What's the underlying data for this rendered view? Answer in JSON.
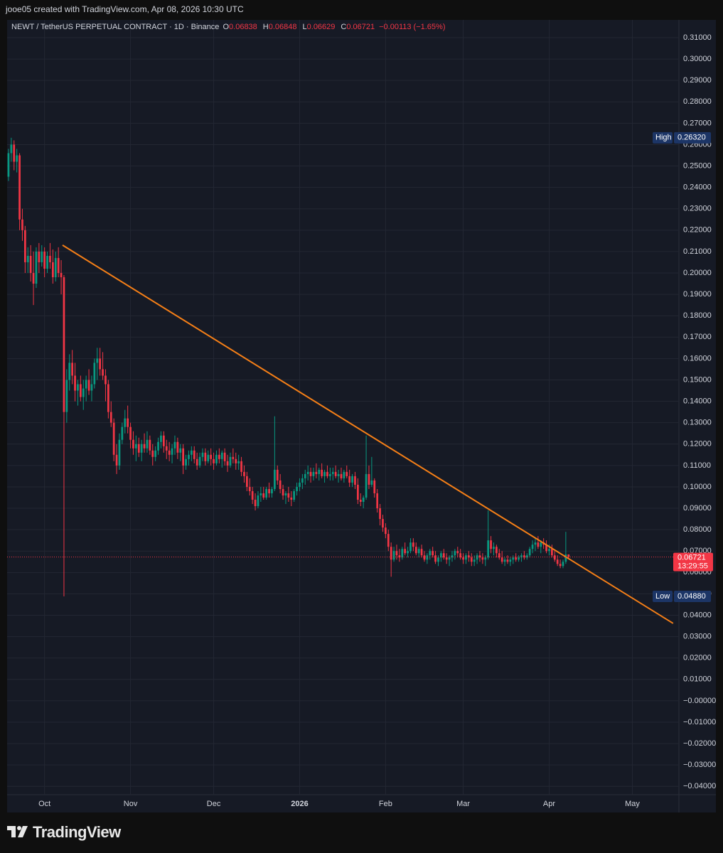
{
  "header": {
    "text": "jooe05 created with TradingView.com, Apr 08, 2026 10:30 UTC"
  },
  "footer": {
    "brand": "TradingView"
  },
  "chart_data": {
    "type": "candlestick",
    "title": "NEWT / TetherUS PERPETUAL CONTRACT · 1D · Binance",
    "legend": {
      "open_label": "O",
      "open": 0.06838,
      "high_label": "H",
      "high": 0.06848,
      "low_label": "L",
      "low": 0.06629,
      "close_label": "C",
      "close": 0.06721,
      "change": "−0.00113 (−1.65%)"
    },
    "up_color": "#089981",
    "down_color": "#f23645",
    "grid": true,
    "xlim": [
      -0.5,
      241.8
    ],
    "xticks": [
      {
        "value": 13,
        "label": "Oct"
      },
      {
        "value": 44,
        "label": "Nov"
      },
      {
        "value": 74,
        "label": "Dec"
      },
      {
        "value": 105,
        "label": "2026"
      },
      {
        "value": 136,
        "label": "Feb"
      },
      {
        "value": 164,
        "label": "Mar"
      },
      {
        "value": 195,
        "label": "Apr"
      },
      {
        "value": 225,
        "label": "May"
      }
    ],
    "ylim": [
      -0.0439,
      0.3183
    ],
    "yticks": [
      {
        "value": 0.31,
        "label": "0.31000"
      },
      {
        "value": 0.3,
        "label": "0.30000"
      },
      {
        "value": 0.29,
        "label": "0.29000"
      },
      {
        "value": 0.28,
        "label": "0.28000"
      },
      {
        "value": 0.27,
        "label": "0.27000"
      },
      {
        "value": 0.26,
        "label": "0.26000"
      },
      {
        "value": 0.25,
        "label": "0.25000"
      },
      {
        "value": 0.24,
        "label": "0.24000"
      },
      {
        "value": 0.23,
        "label": "0.23000"
      },
      {
        "value": 0.22,
        "label": "0.22000"
      },
      {
        "value": 0.21,
        "label": "0.21000"
      },
      {
        "value": 0.2,
        "label": "0.20000"
      },
      {
        "value": 0.19,
        "label": "0.19000"
      },
      {
        "value": 0.18,
        "label": "0.18000"
      },
      {
        "value": 0.17,
        "label": "0.17000"
      },
      {
        "value": 0.16,
        "label": "0.16000"
      },
      {
        "value": 0.15,
        "label": "0.15000"
      },
      {
        "value": 0.14,
        "label": "0.14000"
      },
      {
        "value": 0.13,
        "label": "0.13000"
      },
      {
        "value": 0.12,
        "label": "0.12000"
      },
      {
        "value": 0.11,
        "label": "0.11000"
      },
      {
        "value": 0.1,
        "label": "0.10000"
      },
      {
        "value": 0.09,
        "label": "0.09000"
      },
      {
        "value": 0.08,
        "label": "0.08000"
      },
      {
        "value": 0.07,
        "label": "0.07000"
      },
      {
        "value": 0.06,
        "label": "0.06000"
      },
      {
        "value": 0.05,
        "label": "0.05000"
      },
      {
        "value": 0.04,
        "label": "0.04000"
      },
      {
        "value": 0.03,
        "label": "0.03000"
      },
      {
        "value": 0.02,
        "label": "0.02000"
      },
      {
        "value": 0.01,
        "label": "0.01000"
      },
      {
        "value": 0,
        "label": "−0.00000"
      },
      {
        "value": -0.01,
        "label": "−0.01000"
      },
      {
        "value": -0.02,
        "label": "−0.02000"
      },
      {
        "value": -0.03,
        "label": "−0.03000"
      },
      {
        "value": -0.04,
        "label": "−0.04000"
      }
    ],
    "high_marker": {
      "label": "High",
      "value": 0.2632,
      "value_label": "0.26320"
    },
    "low_marker": {
      "label": "Low",
      "value": 0.0488,
      "value_label": "0.04880"
    },
    "last_price": {
      "value": 0.06721,
      "value_label": "0.06721",
      "countdown": "13:29:55"
    },
    "trendline": {
      "x": [
        19.5,
        239.7
      ],
      "values": [
        0.213,
        0.0362
      ],
      "color": "#f57f17"
    },
    "candles": [
      [
        0.245,
        0.258,
        0.243,
        0.256
      ],
      [
        0.256,
        0.2632,
        0.252,
        0.26
      ],
      [
        0.26,
        0.262,
        0.248,
        0.252
      ],
      [
        0.252,
        0.258,
        0.247,
        0.255
      ],
      [
        0.255,
        0.256,
        0.22,
        0.225
      ],
      [
        0.225,
        0.23,
        0.215,
        0.22
      ],
      [
        0.22,
        0.222,
        0.2,
        0.205
      ],
      [
        0.205,
        0.212,
        0.2,
        0.208
      ],
      [
        0.208,
        0.213,
        0.196,
        0.2
      ],
      [
        0.2,
        0.21,
        0.185,
        0.195
      ],
      [
        0.195,
        0.212,
        0.193,
        0.21
      ],
      [
        0.21,
        0.214,
        0.2,
        0.205
      ],
      [
        0.205,
        0.213,
        0.203,
        0.21
      ],
      [
        0.21,
        0.212,
        0.198,
        0.202
      ],
      [
        0.202,
        0.21,
        0.2,
        0.208
      ],
      [
        0.208,
        0.214,
        0.202,
        0.205
      ],
      [
        0.205,
        0.211,
        0.195,
        0.198
      ],
      [
        0.198,
        0.21,
        0.196,
        0.207
      ],
      [
        0.207,
        0.212,
        0.198,
        0.2
      ],
      [
        0.2,
        0.206,
        0.19,
        0.198
      ],
      [
        0.198,
        0.199,
        0.0488,
        0.135
      ],
      [
        0.135,
        0.155,
        0.13,
        0.15
      ],
      [
        0.15,
        0.162,
        0.145,
        0.158
      ],
      [
        0.158,
        0.164,
        0.148,
        0.152
      ],
      [
        0.152,
        0.158,
        0.14,
        0.145
      ],
      [
        0.145,
        0.15,
        0.138,
        0.148
      ],
      [
        0.148,
        0.152,
        0.14,
        0.142
      ],
      [
        0.142,
        0.15,
        0.136,
        0.146
      ],
      [
        0.146,
        0.152,
        0.14,
        0.15
      ],
      [
        0.15,
        0.155,
        0.143,
        0.145
      ],
      [
        0.145,
        0.152,
        0.14,
        0.148
      ],
      [
        0.148,
        0.16,
        0.146,
        0.158
      ],
      [
        0.158,
        0.165,
        0.15,
        0.16
      ],
      [
        0.16,
        0.165,
        0.152,
        0.155
      ],
      [
        0.155,
        0.163,
        0.15,
        0.152
      ],
      [
        0.152,
        0.155,
        0.14,
        0.148
      ],
      [
        0.148,
        0.15,
        0.132,
        0.135
      ],
      [
        0.135,
        0.14,
        0.128,
        0.13
      ],
      [
        0.13,
        0.132,
        0.112,
        0.115
      ],
      [
        0.115,
        0.12,
        0.106,
        0.11
      ],
      [
        0.11,
        0.125,
        0.108,
        0.122
      ],
      [
        0.122,
        0.13,
        0.12,
        0.128
      ],
      [
        0.128,
        0.136,
        0.125,
        0.132
      ],
      [
        0.132,
        0.138,
        0.125,
        0.128
      ],
      [
        0.128,
        0.13,
        0.118,
        0.122
      ],
      [
        0.122,
        0.126,
        0.115,
        0.118
      ],
      [
        0.118,
        0.124,
        0.112,
        0.12
      ],
      [
        0.12,
        0.123,
        0.114,
        0.116
      ],
      [
        0.116,
        0.122,
        0.112,
        0.12
      ],
      [
        0.12,
        0.125,
        0.116,
        0.118
      ],
      [
        0.118,
        0.126,
        0.116,
        0.122
      ],
      [
        0.122,
        0.124,
        0.115,
        0.117
      ],
      [
        0.117,
        0.12,
        0.11,
        0.114
      ],
      [
        0.114,
        0.119,
        0.112,
        0.117
      ],
      [
        0.117,
        0.123,
        0.115,
        0.121
      ],
      [
        0.121,
        0.126,
        0.118,
        0.124
      ],
      [
        0.124,
        0.126,
        0.116,
        0.119
      ],
      [
        0.119,
        0.122,
        0.113,
        0.117
      ],
      [
        0.117,
        0.121,
        0.112,
        0.115
      ],
      [
        0.115,
        0.12,
        0.111,
        0.118
      ],
      [
        0.118,
        0.124,
        0.115,
        0.121
      ],
      [
        0.121,
        0.123,
        0.113,
        0.116
      ],
      [
        0.116,
        0.12,
        0.112,
        0.118
      ],
      [
        0.118,
        0.12,
        0.106,
        0.11
      ],
      [
        0.11,
        0.115,
        0.108,
        0.113
      ],
      [
        0.113,
        0.117,
        0.11,
        0.115
      ],
      [
        0.115,
        0.119,
        0.112,
        0.117
      ],
      [
        0.117,
        0.119,
        0.111,
        0.113
      ],
      [
        0.113,
        0.116,
        0.108,
        0.11
      ],
      [
        0.11,
        0.116,
        0.109,
        0.114
      ],
      [
        0.114,
        0.118,
        0.112,
        0.116
      ],
      [
        0.116,
        0.118,
        0.11,
        0.112
      ],
      [
        0.112,
        0.117,
        0.111,
        0.115
      ],
      [
        0.115,
        0.118,
        0.11,
        0.113
      ],
      [
        0.113,
        0.116,
        0.108,
        0.111
      ],
      [
        0.111,
        0.117,
        0.11,
        0.115
      ],
      [
        0.115,
        0.118,
        0.111,
        0.113
      ],
      [
        0.113,
        0.117,
        0.109,
        0.116
      ],
      [
        0.116,
        0.118,
        0.11,
        0.112
      ],
      [
        0.112,
        0.115,
        0.107,
        0.11
      ],
      [
        0.11,
        0.116,
        0.109,
        0.114
      ],
      [
        0.114,
        0.118,
        0.111,
        0.113
      ],
      [
        0.113,
        0.116,
        0.108,
        0.111
      ],
      [
        0.111,
        0.115,
        0.108,
        0.112
      ],
      [
        0.112,
        0.114,
        0.105,
        0.107
      ],
      [
        0.107,
        0.11,
        0.102,
        0.105
      ],
      [
        0.105,
        0.107,
        0.098,
        0.1
      ],
      [
        0.1,
        0.104,
        0.096,
        0.098
      ],
      [
        0.098,
        0.1,
        0.092,
        0.094
      ],
      [
        0.094,
        0.097,
        0.089,
        0.091
      ],
      [
        0.091,
        0.098,
        0.09,
        0.096
      ],
      [
        0.096,
        0.1,
        0.093,
        0.097
      ],
      [
        0.097,
        0.1,
        0.094,
        0.095
      ],
      [
        0.095,
        0.1,
        0.094,
        0.099
      ],
      [
        0.099,
        0.102,
        0.095,
        0.097
      ],
      [
        0.097,
        0.1,
        0.095,
        0.099
      ],
      [
        0.099,
        0.133,
        0.098,
        0.108
      ],
      [
        0.108,
        0.11,
        0.101,
        0.103
      ],
      [
        0.103,
        0.106,
        0.097,
        0.099
      ],
      [
        0.099,
        0.101,
        0.094,
        0.096
      ],
      [
        0.096,
        0.098,
        0.092,
        0.097
      ],
      [
        0.097,
        0.1,
        0.093,
        0.095
      ],
      [
        0.095,
        0.098,
        0.091,
        0.094
      ],
      [
        0.094,
        0.099,
        0.093,
        0.098
      ],
      [
        0.098,
        0.102,
        0.096,
        0.1
      ],
      [
        0.1,
        0.104,
        0.098,
        0.102
      ],
      [
        0.102,
        0.106,
        0.099,
        0.104
      ],
      [
        0.104,
        0.108,
        0.101,
        0.106
      ],
      [
        0.106,
        0.11,
        0.103,
        0.107
      ],
      [
        0.107,
        0.109,
        0.102,
        0.105
      ],
      [
        0.105,
        0.109,
        0.103,
        0.107
      ],
      [
        0.107,
        0.111,
        0.104,
        0.106
      ],
      [
        0.106,
        0.109,
        0.103,
        0.108
      ],
      [
        0.108,
        0.111,
        0.104,
        0.105
      ],
      [
        0.105,
        0.108,
        0.102,
        0.107
      ],
      [
        0.107,
        0.11,
        0.104,
        0.105
      ],
      [
        0.105,
        0.109,
        0.103,
        0.106
      ],
      [
        0.106,
        0.109,
        0.103,
        0.107
      ],
      [
        0.107,
        0.11,
        0.104,
        0.105
      ],
      [
        0.105,
        0.108,
        0.102,
        0.106
      ],
      [
        0.106,
        0.109,
        0.103,
        0.104
      ],
      [
        0.104,
        0.108,
        0.102,
        0.107
      ],
      [
        0.107,
        0.11,
        0.104,
        0.105
      ],
      [
        0.105,
        0.108,
        0.1,
        0.102
      ],
      [
        0.102,
        0.106,
        0.1,
        0.105
      ],
      [
        0.105,
        0.107,
        0.099,
        0.101
      ],
      [
        0.101,
        0.104,
        0.092,
        0.094
      ],
      [
        0.094,
        0.097,
        0.091,
        0.093
      ],
      [
        0.093,
        0.096,
        0.09,
        0.095
      ],
      [
        0.095,
        0.124,
        0.094,
        0.106
      ],
      [
        0.106,
        0.11,
        0.099,
        0.101
      ],
      [
        0.101,
        0.114,
        0.1,
        0.103
      ],
      [
        0.103,
        0.104,
        0.095,
        0.097
      ],
      [
        0.097,
        0.099,
        0.088,
        0.09
      ],
      [
        0.09,
        0.092,
        0.082,
        0.085
      ],
      [
        0.085,
        0.087,
        0.079,
        0.081
      ],
      [
        0.081,
        0.083,
        0.076,
        0.078
      ],
      [
        0.078,
        0.08,
        0.07,
        0.072
      ],
      [
        0.072,
        0.074,
        0.058,
        0.066
      ],
      [
        0.066,
        0.072,
        0.065,
        0.07
      ],
      [
        0.07,
        0.073,
        0.066,
        0.068
      ],
      [
        0.068,
        0.071,
        0.065,
        0.067
      ],
      [
        0.067,
        0.072,
        0.066,
        0.071
      ],
      [
        0.071,
        0.074,
        0.068,
        0.069
      ],
      [
        0.069,
        0.072,
        0.067,
        0.07
      ],
      [
        0.07,
        0.076,
        0.069,
        0.074
      ],
      [
        0.074,
        0.076,
        0.07,
        0.072
      ],
      [
        0.072,
        0.074,
        0.068,
        0.069
      ],
      [
        0.069,
        0.072,
        0.067,
        0.071
      ],
      [
        0.071,
        0.073,
        0.067,
        0.068
      ],
      [
        0.068,
        0.07,
        0.065,
        0.066
      ],
      [
        0.066,
        0.069,
        0.064,
        0.068
      ],
      [
        0.068,
        0.071,
        0.066,
        0.07
      ],
      [
        0.07,
        0.072,
        0.067,
        0.068
      ],
      [
        0.068,
        0.07,
        0.064,
        0.065
      ],
      [
        0.065,
        0.068,
        0.063,
        0.067
      ],
      [
        0.067,
        0.07,
        0.065,
        0.069
      ],
      [
        0.069,
        0.071,
        0.066,
        0.067
      ],
      [
        0.067,
        0.069,
        0.064,
        0.066
      ],
      [
        0.066,
        0.068,
        0.063,
        0.067
      ],
      [
        0.067,
        0.07,
        0.065,
        0.068
      ],
      [
        0.068,
        0.071,
        0.066,
        0.07
      ],
      [
        0.07,
        0.072,
        0.067,
        0.069
      ],
      [
        0.069,
        0.071,
        0.066,
        0.067
      ],
      [
        0.067,
        0.069,
        0.064,
        0.066
      ],
      [
        0.066,
        0.069,
        0.064,
        0.068
      ],
      [
        0.068,
        0.07,
        0.065,
        0.067
      ],
      [
        0.067,
        0.069,
        0.063,
        0.065
      ],
      [
        0.065,
        0.068,
        0.063,
        0.066
      ],
      [
        0.066,
        0.069,
        0.064,
        0.068
      ],
      [
        0.068,
        0.07,
        0.065,
        0.067
      ],
      [
        0.067,
        0.069,
        0.064,
        0.066
      ],
      [
        0.066,
        0.068,
        0.063,
        0.067
      ],
      [
        0.067,
        0.089,
        0.066,
        0.075
      ],
      [
        0.075,
        0.077,
        0.069,
        0.071
      ],
      [
        0.071,
        0.074,
        0.068,
        0.072
      ],
      [
        0.072,
        0.073,
        0.067,
        0.069
      ],
      [
        0.069,
        0.071,
        0.066,
        0.067
      ],
      [
        0.067,
        0.07,
        0.064,
        0.065
      ],
      [
        0.065,
        0.067,
        0.063,
        0.066
      ],
      [
        0.066,
        0.068,
        0.064,
        0.065
      ],
      [
        0.065,
        0.067,
        0.063,
        0.066
      ],
      [
        0.066,
        0.068,
        0.064,
        0.067
      ],
      [
        0.067,
        0.069,
        0.065,
        0.066
      ],
      [
        0.066,
        0.068,
        0.065,
        0.067
      ],
      [
        0.067,
        0.069,
        0.065,
        0.068
      ],
      [
        0.068,
        0.07,
        0.066,
        0.067
      ],
      [
        0.067,
        0.069,
        0.066,
        0.068
      ],
      [
        0.068,
        0.072,
        0.067,
        0.071
      ],
      [
        0.071,
        0.075,
        0.069,
        0.073
      ],
      [
        0.073,
        0.076,
        0.07,
        0.074
      ],
      [
        0.074,
        0.077,
        0.071,
        0.072
      ],
      [
        0.072,
        0.075,
        0.069,
        0.074
      ],
      [
        0.074,
        0.076,
        0.071,
        0.073
      ],
      [
        0.073,
        0.075,
        0.069,
        0.07
      ],
      [
        0.07,
        0.073,
        0.068,
        0.071
      ],
      [
        0.071,
        0.073,
        0.067,
        0.068
      ],
      [
        0.068,
        0.07,
        0.065,
        0.066
      ],
      [
        0.066,
        0.068,
        0.063,
        0.064
      ],
      [
        0.064,
        0.066,
        0.062,
        0.063
      ],
      [
        0.063,
        0.066,
        0.062,
        0.065
      ],
      [
        0.065,
        0.079,
        0.064,
        0.0684
      ],
      [
        0.06838,
        0.06848,
        0.06629,
        0.06721
      ]
    ]
  }
}
